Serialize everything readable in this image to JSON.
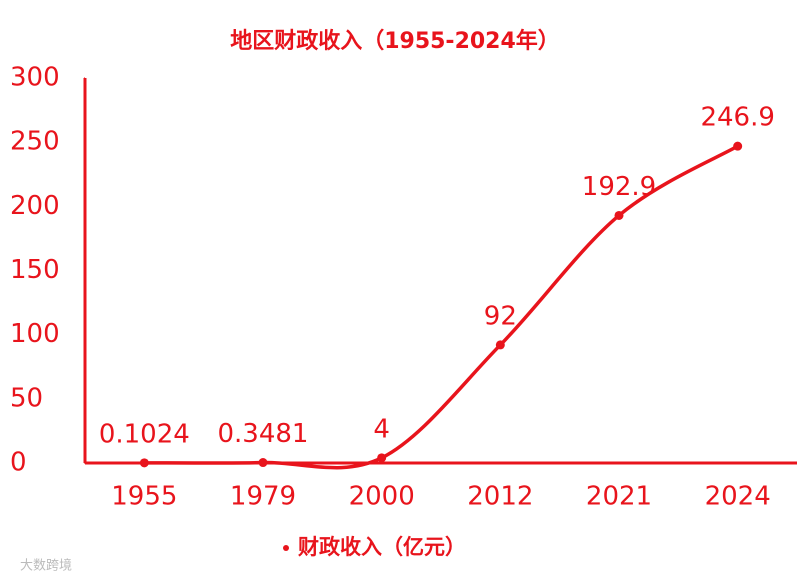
{
  "chart_data": {
    "type": "line",
    "title": "地区财政收入（1955-2024年）",
    "categories": [
      "1955",
      "1979",
      "2000",
      "2012",
      "2021",
      "2024"
    ],
    "series": [
      {
        "name": "财政收入（亿元）",
        "color": "#e8141c",
        "values": [
          0.1024,
          0.3481,
          4,
          92,
          192.9,
          246.9
        ]
      }
    ],
    "ylim": [
      0,
      300
    ],
    "yticks": [
      0,
      50,
      100,
      150,
      200,
      250,
      300
    ],
    "legend": "bottom",
    "data_labels": true,
    "smooth": true,
    "watermark": "大数跨境"
  }
}
